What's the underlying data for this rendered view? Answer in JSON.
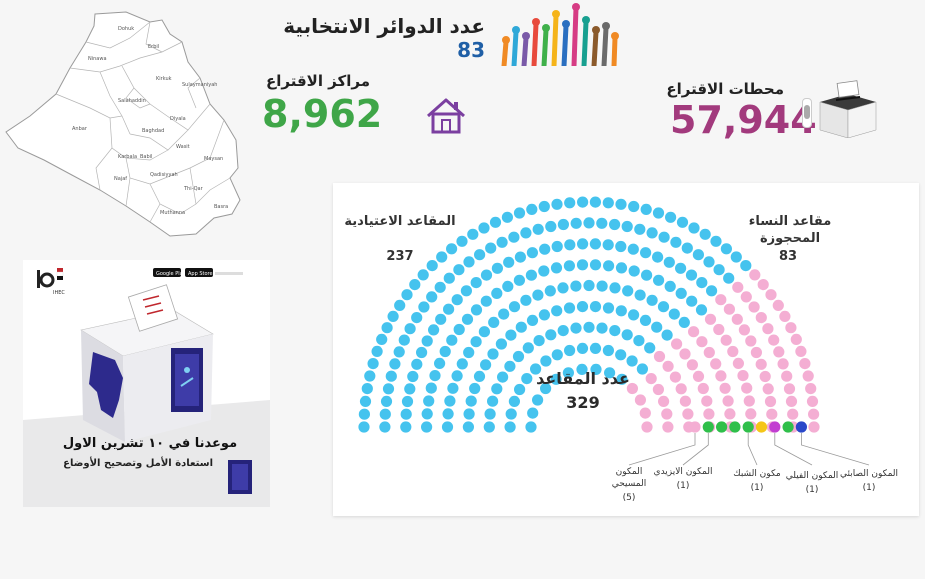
{
  "header": {
    "districts_label": "عدد الدوائر الانتخابية",
    "districts_value": "83"
  },
  "map": {
    "region_labels": [
      "Ninawa",
      "Erbil",
      "Dohuk",
      "Sulaymaniyah",
      "Kirkuk",
      "Salahaddin",
      "Diyala",
      "Baghdad",
      "Anbar",
      "Babil",
      "Wasit",
      "Karbala",
      "Najaf",
      "Qadisiyyah",
      "Maysan",
      "Thi-Qar",
      "Muthanna",
      "Basra"
    ]
  },
  "stats": {
    "centers_label": "مراكز الاقتراع",
    "centers_value": "8,962",
    "stations_label": "محطات الاقتراع",
    "stations_value": "57,944"
  },
  "poster": {
    "date_line": "موعدنا في ١٠ تشرين الاول",
    "slogan": "استعادة الأمل وتصحيح الأوضاع",
    "store_badges": [
      "Google Play",
      "App Store"
    ]
  },
  "seats": {
    "regular_label": "المقاعد الاعتيادية",
    "regular_count": "237",
    "women_label": "مقاعد النساء المحجوزة",
    "women_count": "83",
    "total_label": "عدد المقاعد",
    "total_count": "329",
    "colors": {
      "regular": "#45c3ee",
      "women": "#f4aed3",
      "christian": "#f4aed3",
      "yazidi": "#2fbf4a",
      "shabak": "#2fbf4a",
      "faili": "#f5c618",
      "sabean": "#2a48c9",
      "extra_green": "#2fbf4a",
      "extra_purple": "#c23ed1"
    },
    "minorities": [
      {
        "label": "المكون المسيحي",
        "count": "(5)"
      },
      {
        "label": "المكون الايزيدي",
        "count": "(1)"
      },
      {
        "label": "مكون الشبك",
        "count": "(1)"
      },
      {
        "label": "المكون الفيلي",
        "count": "(1)"
      },
      {
        "label": "المكون الصابئي",
        "count": "(1)"
      }
    ]
  }
}
